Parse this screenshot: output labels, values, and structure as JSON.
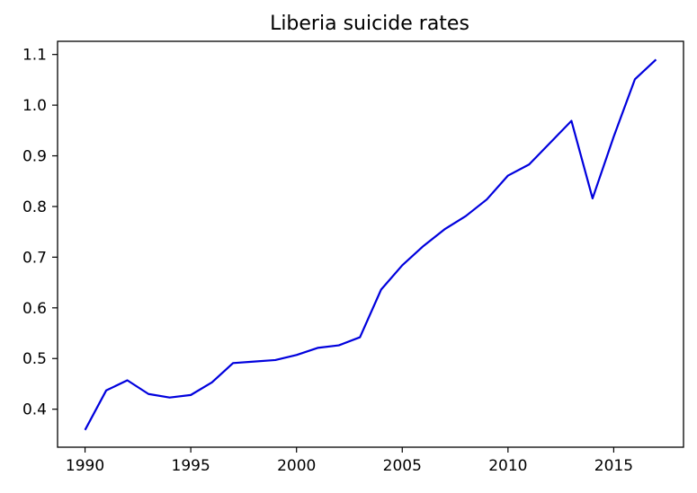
{
  "chart_data": {
    "type": "line",
    "title": "Liberia suicide rates",
    "xlabel": "",
    "ylabel": "",
    "xlim": [
      1988.7,
      2018.3
    ],
    "ylim": [
      0.325,
      1.126
    ],
    "xticks": [
      1990,
      1995,
      2000,
      2005,
      2010,
      2015
    ],
    "yticks": [
      0.4,
      0.5,
      0.6,
      0.7,
      0.8,
      0.9,
      1.0,
      1.1
    ],
    "ytick_labels": [
      "0.4",
      "0.5",
      "0.6",
      "0.7",
      "0.8",
      "0.9",
      "1.0",
      "1.1"
    ],
    "grid": false,
    "series": [
      {
        "name": "Liberia",
        "color": "#0000dd",
        "x": [
          1990,
          1991,
          1992,
          1993,
          1994,
          1995,
          1996,
          1997,
          1998,
          1999,
          2000,
          2001,
          2002,
          2003,
          2004,
          2005,
          2006,
          2007,
          2008,
          2009,
          2010,
          2011,
          2012,
          2013,
          2014,
          2015,
          2016,
          2017
        ],
        "values": [
          0.359,
          0.437,
          0.457,
          0.43,
          0.423,
          0.428,
          0.453,
          0.491,
          0.494,
          0.497,
          0.507,
          0.521,
          0.526,
          0.542,
          0.636,
          0.684,
          0.722,
          0.755,
          0.781,
          0.814,
          0.861,
          0.883,
          0.926,
          0.969,
          0.816,
          0.938,
          1.051,
          1.09
        ]
      }
    ]
  }
}
